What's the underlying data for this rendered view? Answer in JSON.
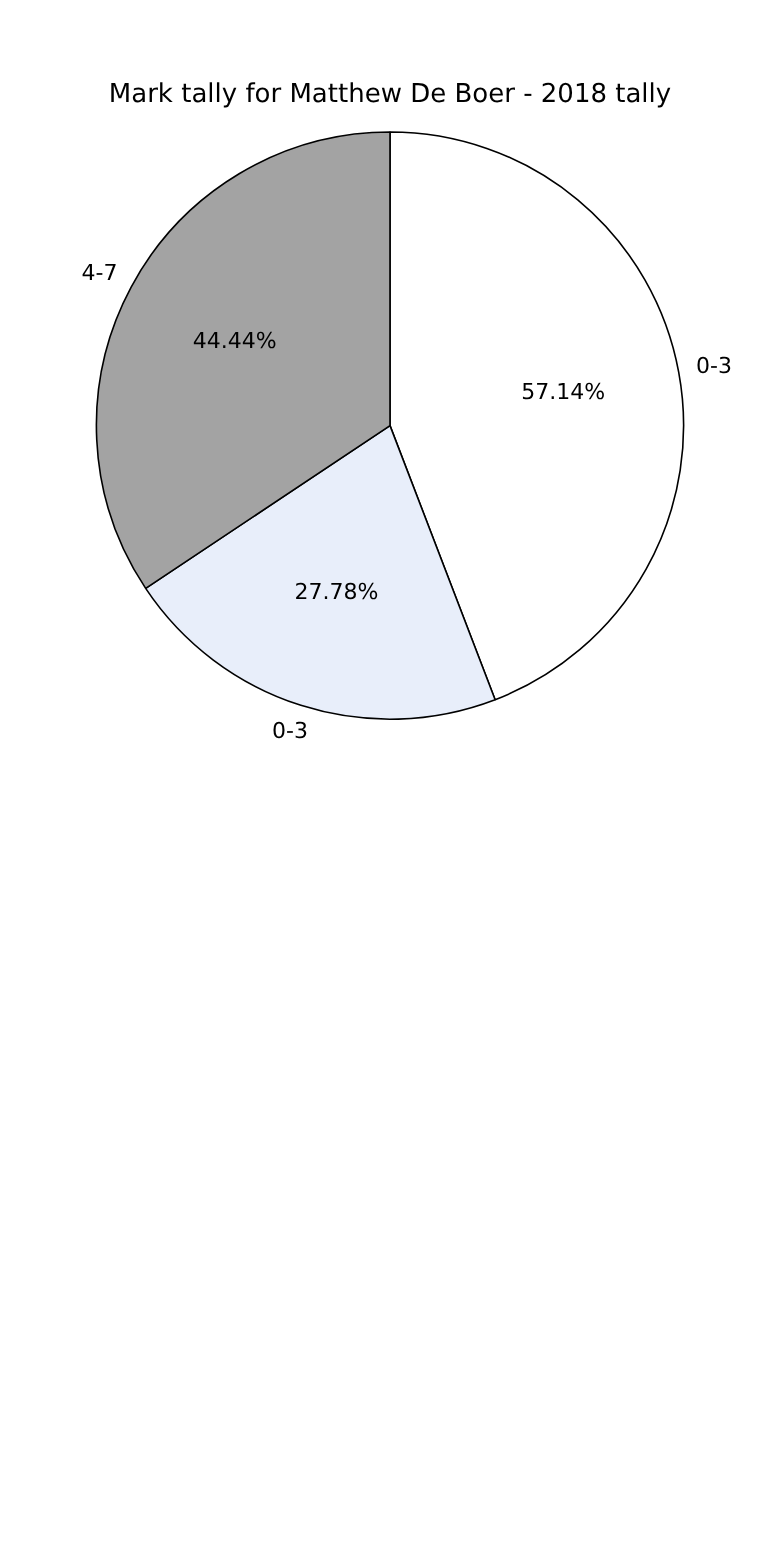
{
  "chart_data": {
    "type": "pie",
    "title": "Mark tally for Matthew De Boer - 2018 tally",
    "categories": [
      "0-3",
      "0-3",
      "4-7"
    ],
    "values": [
      57.14,
      27.78,
      44.44
    ],
    "value_labels": [
      "57.14%",
      "27.78%",
      "44.44%"
    ],
    "colors": [
      "#ffffff",
      "#e8eefa",
      "#a3a3a3"
    ]
  }
}
